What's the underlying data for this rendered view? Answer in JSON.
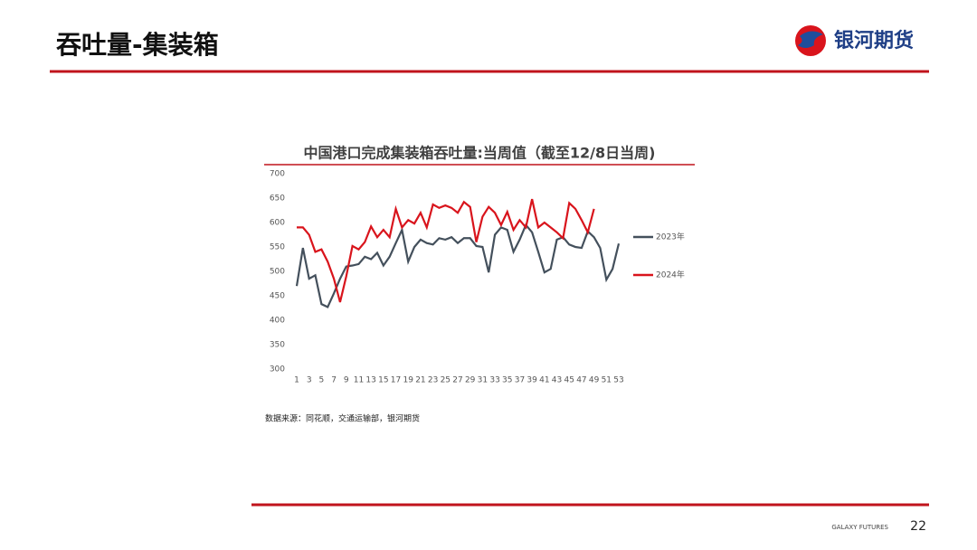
{
  "header": {
    "title": "吞吐量-集装箱",
    "brand": "银河期货"
  },
  "footer": {
    "brand": "GALAXY FUTURES",
    "page": "22"
  },
  "chart_data": {
    "type": "line",
    "title": "中国港口完成集装箱吞吐量:当周值（截至12/8日当周)",
    "x": [
      1,
      2,
      3,
      4,
      5,
      6,
      7,
      8,
      9,
      10,
      11,
      12,
      13,
      14,
      15,
      16,
      17,
      18,
      19,
      20,
      21,
      22,
      23,
      24,
      25,
      26,
      27,
      28,
      29,
      30,
      31,
      32,
      33,
      34,
      35,
      36,
      37,
      38,
      39,
      40,
      41,
      42,
      43,
      44,
      45,
      46,
      47,
      48,
      49,
      50,
      51,
      52,
      53
    ],
    "xlim": [
      1,
      53
    ],
    "xticks": [
      1,
      3,
      5,
      7,
      9,
      11,
      13,
      15,
      17,
      19,
      21,
      23,
      25,
      27,
      29,
      31,
      33,
      35,
      37,
      39,
      41,
      43,
      45,
      47,
      49,
      51,
      53
    ],
    "ylim": [
      300,
      700
    ],
    "yticks": [
      300,
      350,
      400,
      450,
      500,
      550,
      600,
      650,
      700
    ],
    "legend": "right",
    "series": [
      {
        "name": "2023年",
        "color": "#44505c",
        "values": [
          470,
          548,
          485,
          492,
          433,
          427,
          455,
          485,
          510,
          512,
          515,
          530,
          525,
          538,
          512,
          530,
          558,
          585,
          520,
          550,
          565,
          558,
          555,
          568,
          565,
          570,
          558,
          568,
          568,
          552,
          550,
          498,
          575,
          590,
          585,
          540,
          565,
          595,
          580,
          540,
          498,
          505,
          565,
          570,
          555,
          550,
          548,
          582,
          570,
          548,
          483,
          505,
          557
        ]
      },
      {
        "name": "2024年",
        "color": "#d9141c",
        "values": [
          590,
          590,
          575,
          540,
          545,
          520,
          485,
          437,
          490,
          552,
          545,
          560,
          592,
          570,
          585,
          570,
          628,
          590,
          605,
          598,
          620,
          590,
          637,
          630,
          635,
          630,
          620,
          642,
          632,
          560,
          612,
          632,
          620,
          595,
          622,
          585,
          605,
          590,
          648,
          590,
          600,
          590,
          580,
          568,
          640,
          628,
          605,
          580,
          628,
          null,
          null,
          null,
          null
        ]
      }
    ],
    "source": "数据来源：同花顺，交通运输部，银河期货"
  }
}
